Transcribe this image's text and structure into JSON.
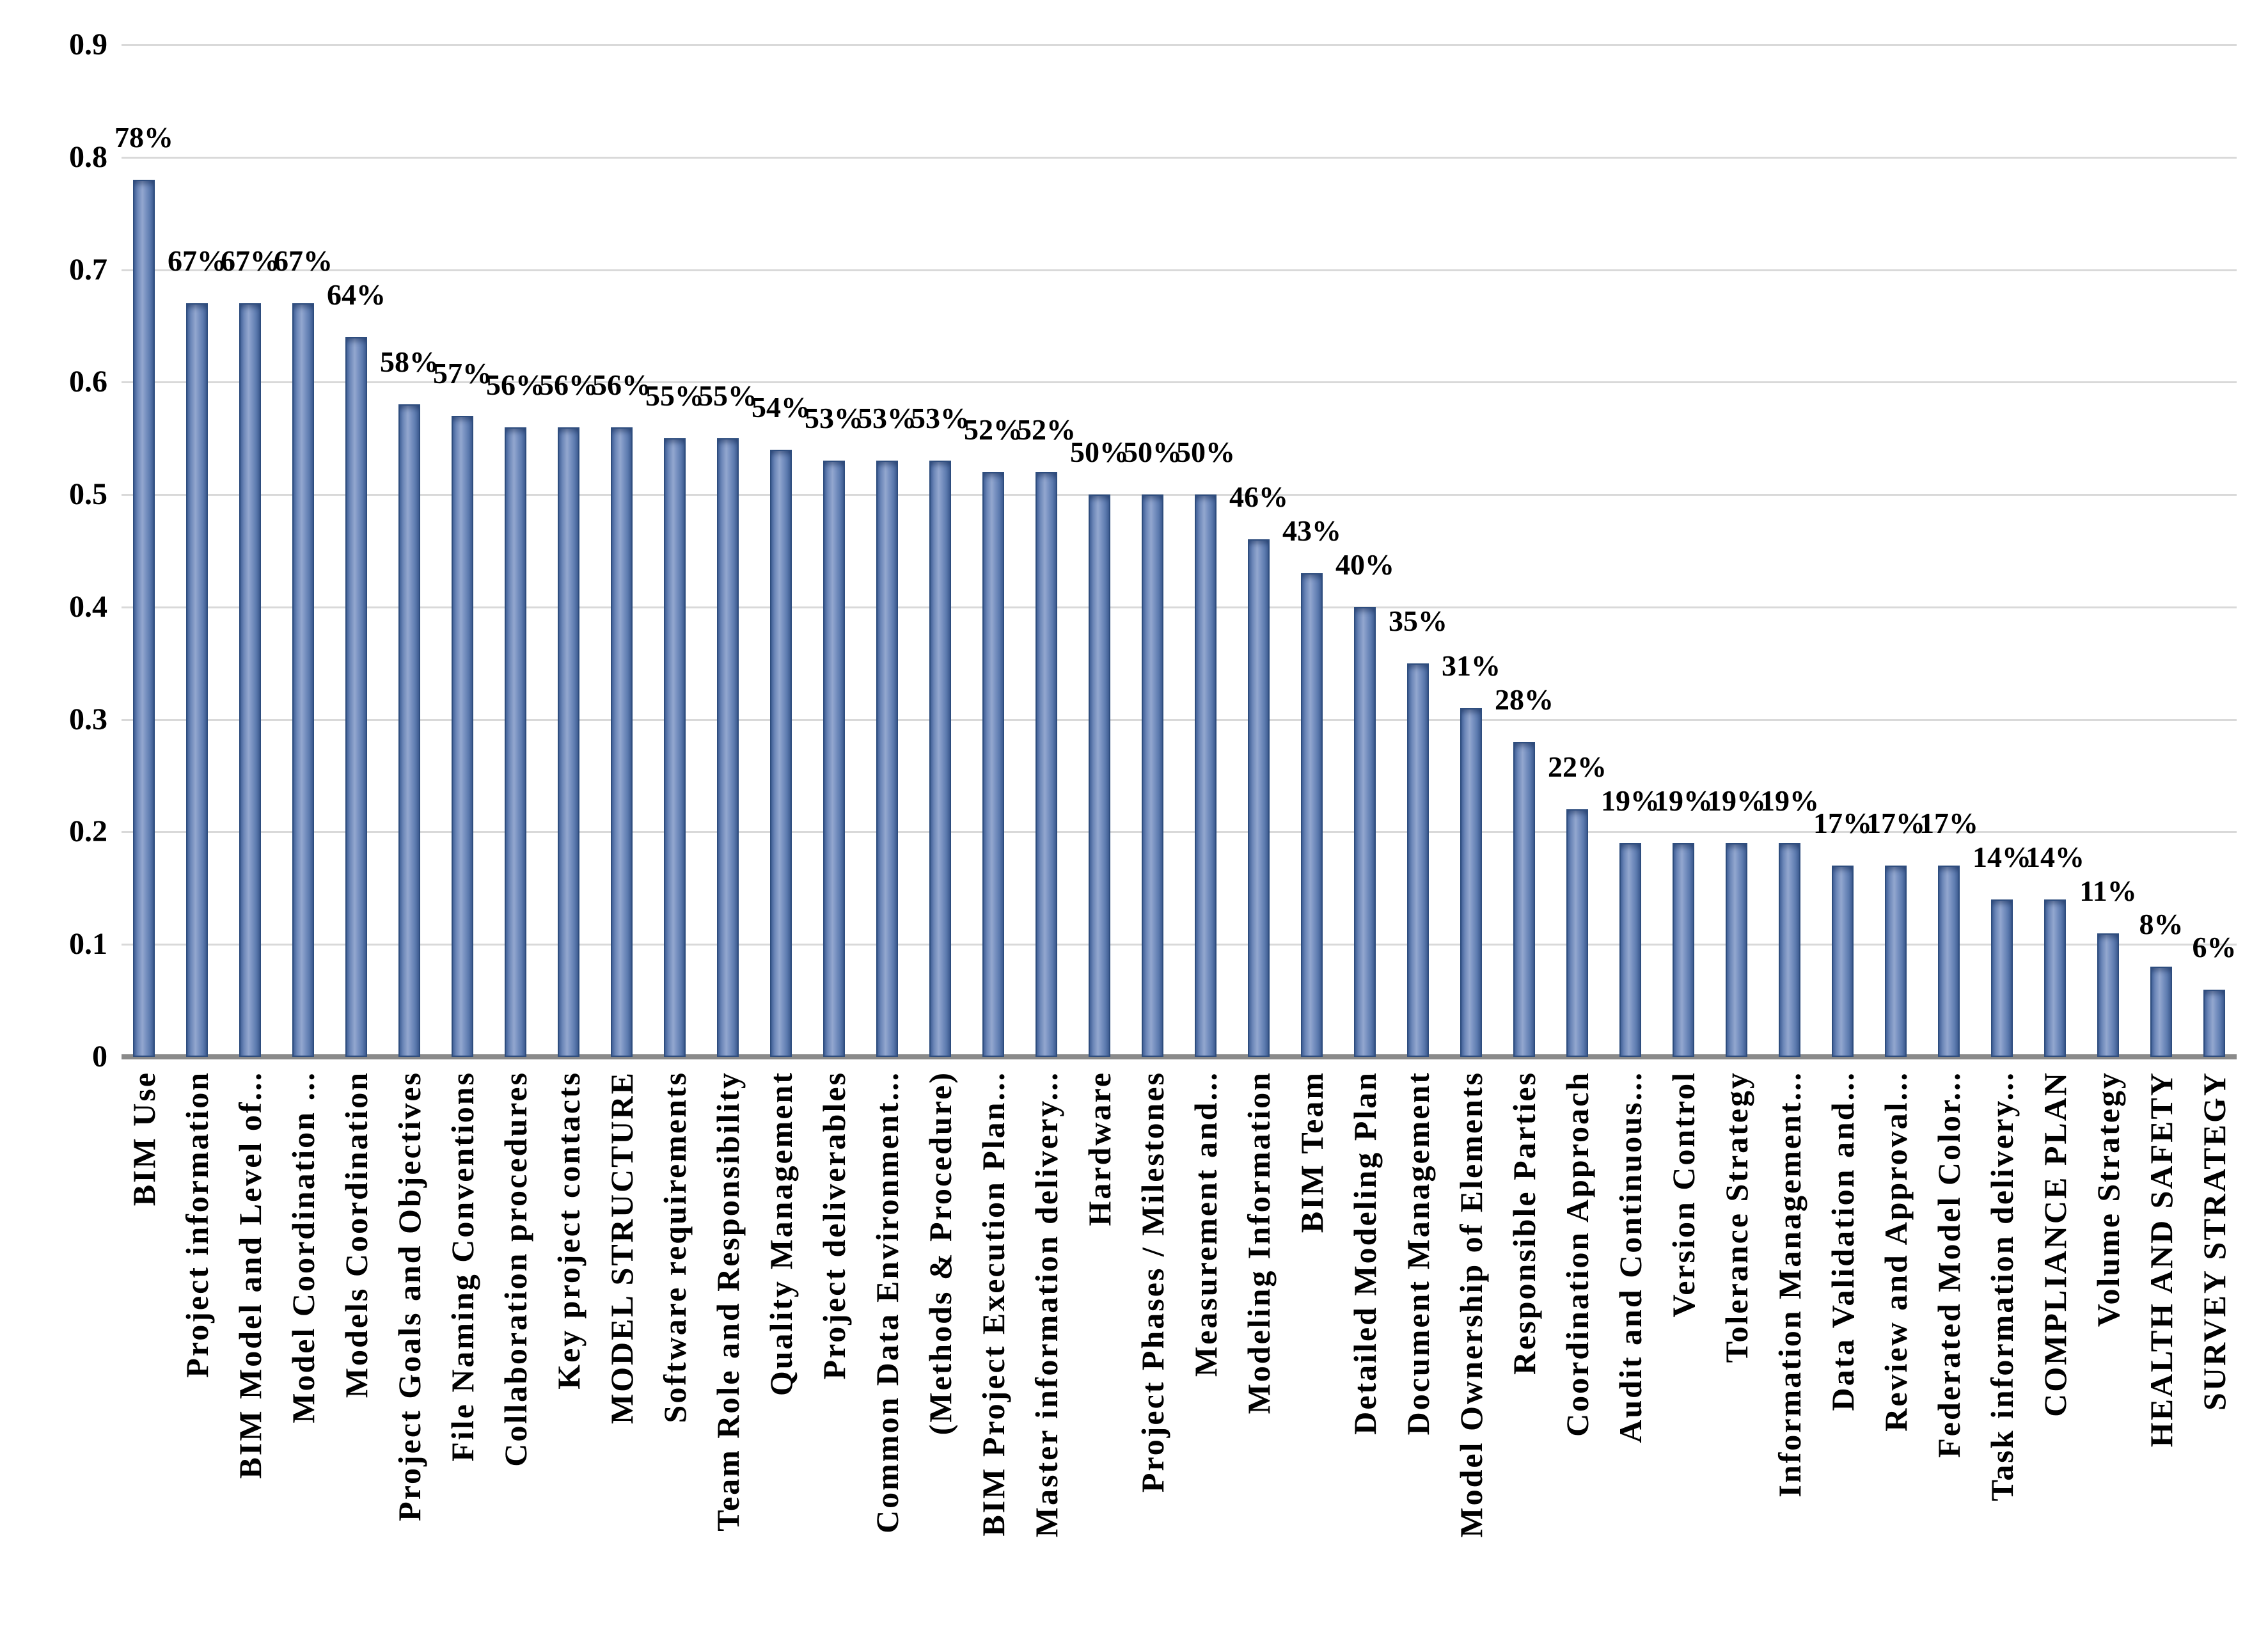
{
  "chart_data": {
    "type": "bar",
    "title": "",
    "xlabel": "",
    "ylabel": "",
    "ylim": [
      0,
      0.9
    ],
    "grid": true,
    "legend": false,
    "ytick_labels": [
      "0.9",
      "0.8",
      "0.7",
      "0.6",
      "0.5",
      "0.4",
      "0.3",
      "0.2",
      "0.1",
      "0"
    ],
    "categories": [
      "BIM Use",
      "Project information",
      "BIM Model and Level of...",
      "Model Coordination ...",
      "Models Coordination",
      "Project Goals and Objectives",
      "File Naming Conventions",
      "Collaboration procedures",
      "Key project contacts",
      "MODEL STRUCTURE",
      "Software requirements",
      "Team Role and Responsibility",
      "Quality Management",
      "Project deliverables",
      "Common Data Environment...",
      "(Methods & Procedure)",
      "BIM Project Execution Plan...",
      "Master information delivery...",
      "Hardware",
      "Project Phases / Milestones",
      "Measurement and...",
      "Modeling Information",
      "BIM Team",
      "Detailed Modeling Plan",
      "Document Management",
      "Model Ownership of Elements",
      "Responsible Parties",
      "Coordination Approach",
      "Audit and Continuous...",
      "Version Control",
      "Tolerance Strategy",
      "Information Management...",
      "Data Validation and...",
      "Review and Approval...",
      "Federated Model Color...",
      "Task information delivery...",
      "COMPLIANCE PLAN",
      "Volume Strategy",
      "HEALTH AND SAFETY",
      "SURVEY STRATEGY"
    ],
    "values_percent": [
      78,
      67,
      67,
      67,
      64,
      58,
      57,
      56,
      56,
      56,
      55,
      55,
      54,
      53,
      53,
      53,
      52,
      52,
      50,
      50,
      50,
      46,
      43,
      40,
      35,
      31,
      28,
      22,
      19,
      19,
      19,
      19,
      17,
      17,
      17,
      14,
      14,
      11,
      8,
      6
    ],
    "labels": [
      "78%",
      "67%",
      "67%",
      "67%",
      "64%",
      "58%",
      "57%",
      "56%",
      "56%",
      "56%",
      "55%",
      "55%",
      "54%",
      "53%",
      "53%",
      "53%",
      "52%",
      "52%",
      "50%",
      "50%",
      "50%",
      "46%",
      "43%",
      "40%",
      "35%",
      "31%",
      "28%",
      "22%",
      "19%",
      "19%",
      "19%",
      "19%",
      "17%",
      "17%",
      "17%",
      "14%",
      "14%",
      "11%",
      "8%",
      "6%"
    ],
    "colors": {
      "bar_fill_light": "#93a7cf",
      "bar_fill_dark": "#46659c",
      "bar_fill_dark2": "#415f94",
      "bar_edge": "#2e4d7e",
      "gridline": "#d9d9d9",
      "axis_line": "#8a8a8a",
      "text": "#000000"
    }
  }
}
